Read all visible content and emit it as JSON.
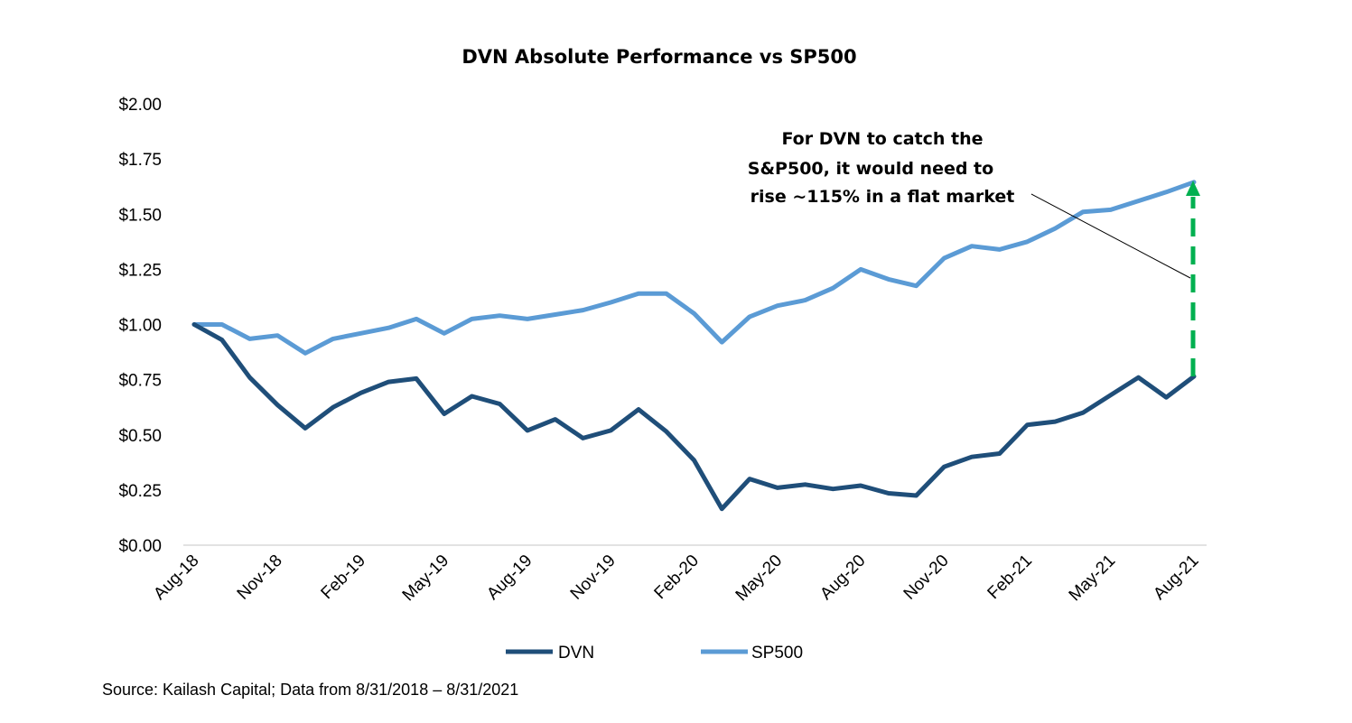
{
  "chart_data": {
    "type": "line",
    "title": "DVN Absolute Performance vs SP500",
    "x": [
      "Aug-18",
      "Sep-18",
      "Oct-18",
      "Nov-18",
      "Dec-18",
      "Jan-19",
      "Feb-19",
      "Mar-19",
      "Apr-19",
      "May-19",
      "Jun-19",
      "Jul-19",
      "Aug-19",
      "Sep-19",
      "Oct-19",
      "Nov-19",
      "Dec-19",
      "Jan-20",
      "Feb-20",
      "Mar-20",
      "Apr-20",
      "May-20",
      "Jun-20",
      "Jul-20",
      "Aug-20",
      "Sep-20",
      "Oct-20",
      "Nov-20",
      "Dec-20",
      "Jan-21",
      "Feb-21",
      "Mar-21",
      "Apr-21",
      "May-21",
      "Jun-21",
      "Jul-21",
      "Aug-21"
    ],
    "x_tick_labels": [
      "Aug-18",
      "Nov-18",
      "Feb-19",
      "May-19",
      "Aug-19",
      "Nov-19",
      "Feb-20",
      "May-20",
      "Aug-20",
      "Nov-20",
      "Feb-21",
      "May-21",
      "Aug-21"
    ],
    "y_tick_labels": [
      "$0.00",
      "$0.25",
      "$0.50",
      "$0.75",
      "$1.00",
      "$1.25",
      "$1.50",
      "$1.75",
      "$2.00"
    ],
    "ylim": [
      0,
      2
    ],
    "grid": false,
    "legend_position": "bottom",
    "series": [
      {
        "name": "DVN",
        "color": "#1f4e79",
        "values": [
          1.0,
          0.93,
          0.76,
          0.635,
          0.53,
          0.625,
          0.69,
          0.74,
          0.755,
          0.595,
          0.675,
          0.64,
          0.52,
          0.57,
          0.485,
          0.52,
          0.615,
          0.515,
          0.385,
          0.165,
          0.3,
          0.26,
          0.275,
          0.255,
          0.27,
          0.235,
          0.225,
          0.355,
          0.4,
          0.415,
          0.545,
          0.56,
          0.6,
          0.68,
          0.76,
          0.67,
          0.765
        ]
      },
      {
        "name": "SP500",
        "color": "#5b9bd5",
        "values": [
          1.0,
          1.0,
          0.935,
          0.95,
          0.87,
          0.935,
          0.96,
          0.985,
          1.025,
          0.96,
          1.025,
          1.04,
          1.025,
          1.045,
          1.065,
          1.1,
          1.14,
          1.14,
          1.05,
          0.92,
          1.035,
          1.085,
          1.11,
          1.165,
          1.25,
          1.205,
          1.175,
          1.3,
          1.355,
          1.34,
          1.375,
          1.435,
          1.51,
          1.52,
          1.56,
          1.6,
          1.645
        ]
      }
    ],
    "annotation": {
      "lines": [
        "For DVN to catch the",
        "S&P500, it would need to",
        "rise ~115% in a flat market"
      ],
      "arrow_color": "#00b050"
    }
  },
  "source": "Source: Kailash Capital; Data from 8/31/2018 – 8/31/2021"
}
